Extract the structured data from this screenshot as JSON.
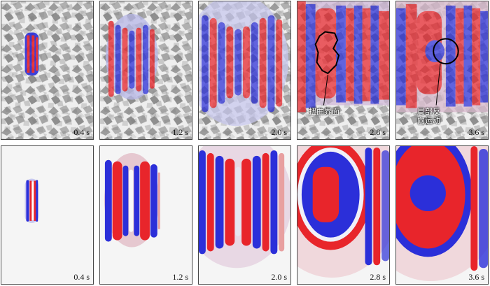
{
  "top_row": [
    {
      "time": "0.4 s"
    },
    {
      "time": "1.2 s"
    },
    {
      "time": "2.0 s"
    },
    {
      "time": "2.8 s",
      "annotation": "扭曲界面"
    },
    {
      "time": "3.6 s",
      "annotation": [
        "局部反",
        "向运动"
      ]
    }
  ],
  "bottom_row": [
    {
      "time": "0.4 s"
    },
    {
      "time": "1.2 s"
    },
    {
      "time": "2.0 s"
    },
    {
      "time": "2.8 s"
    },
    {
      "time": "3.6 s"
    }
  ],
  "colors": {
    "red": "#e8252b",
    "blue": "#2b2fd9",
    "terrain_light": "#f4f4f4",
    "terrain_dark": "#8a8a8a"
  }
}
